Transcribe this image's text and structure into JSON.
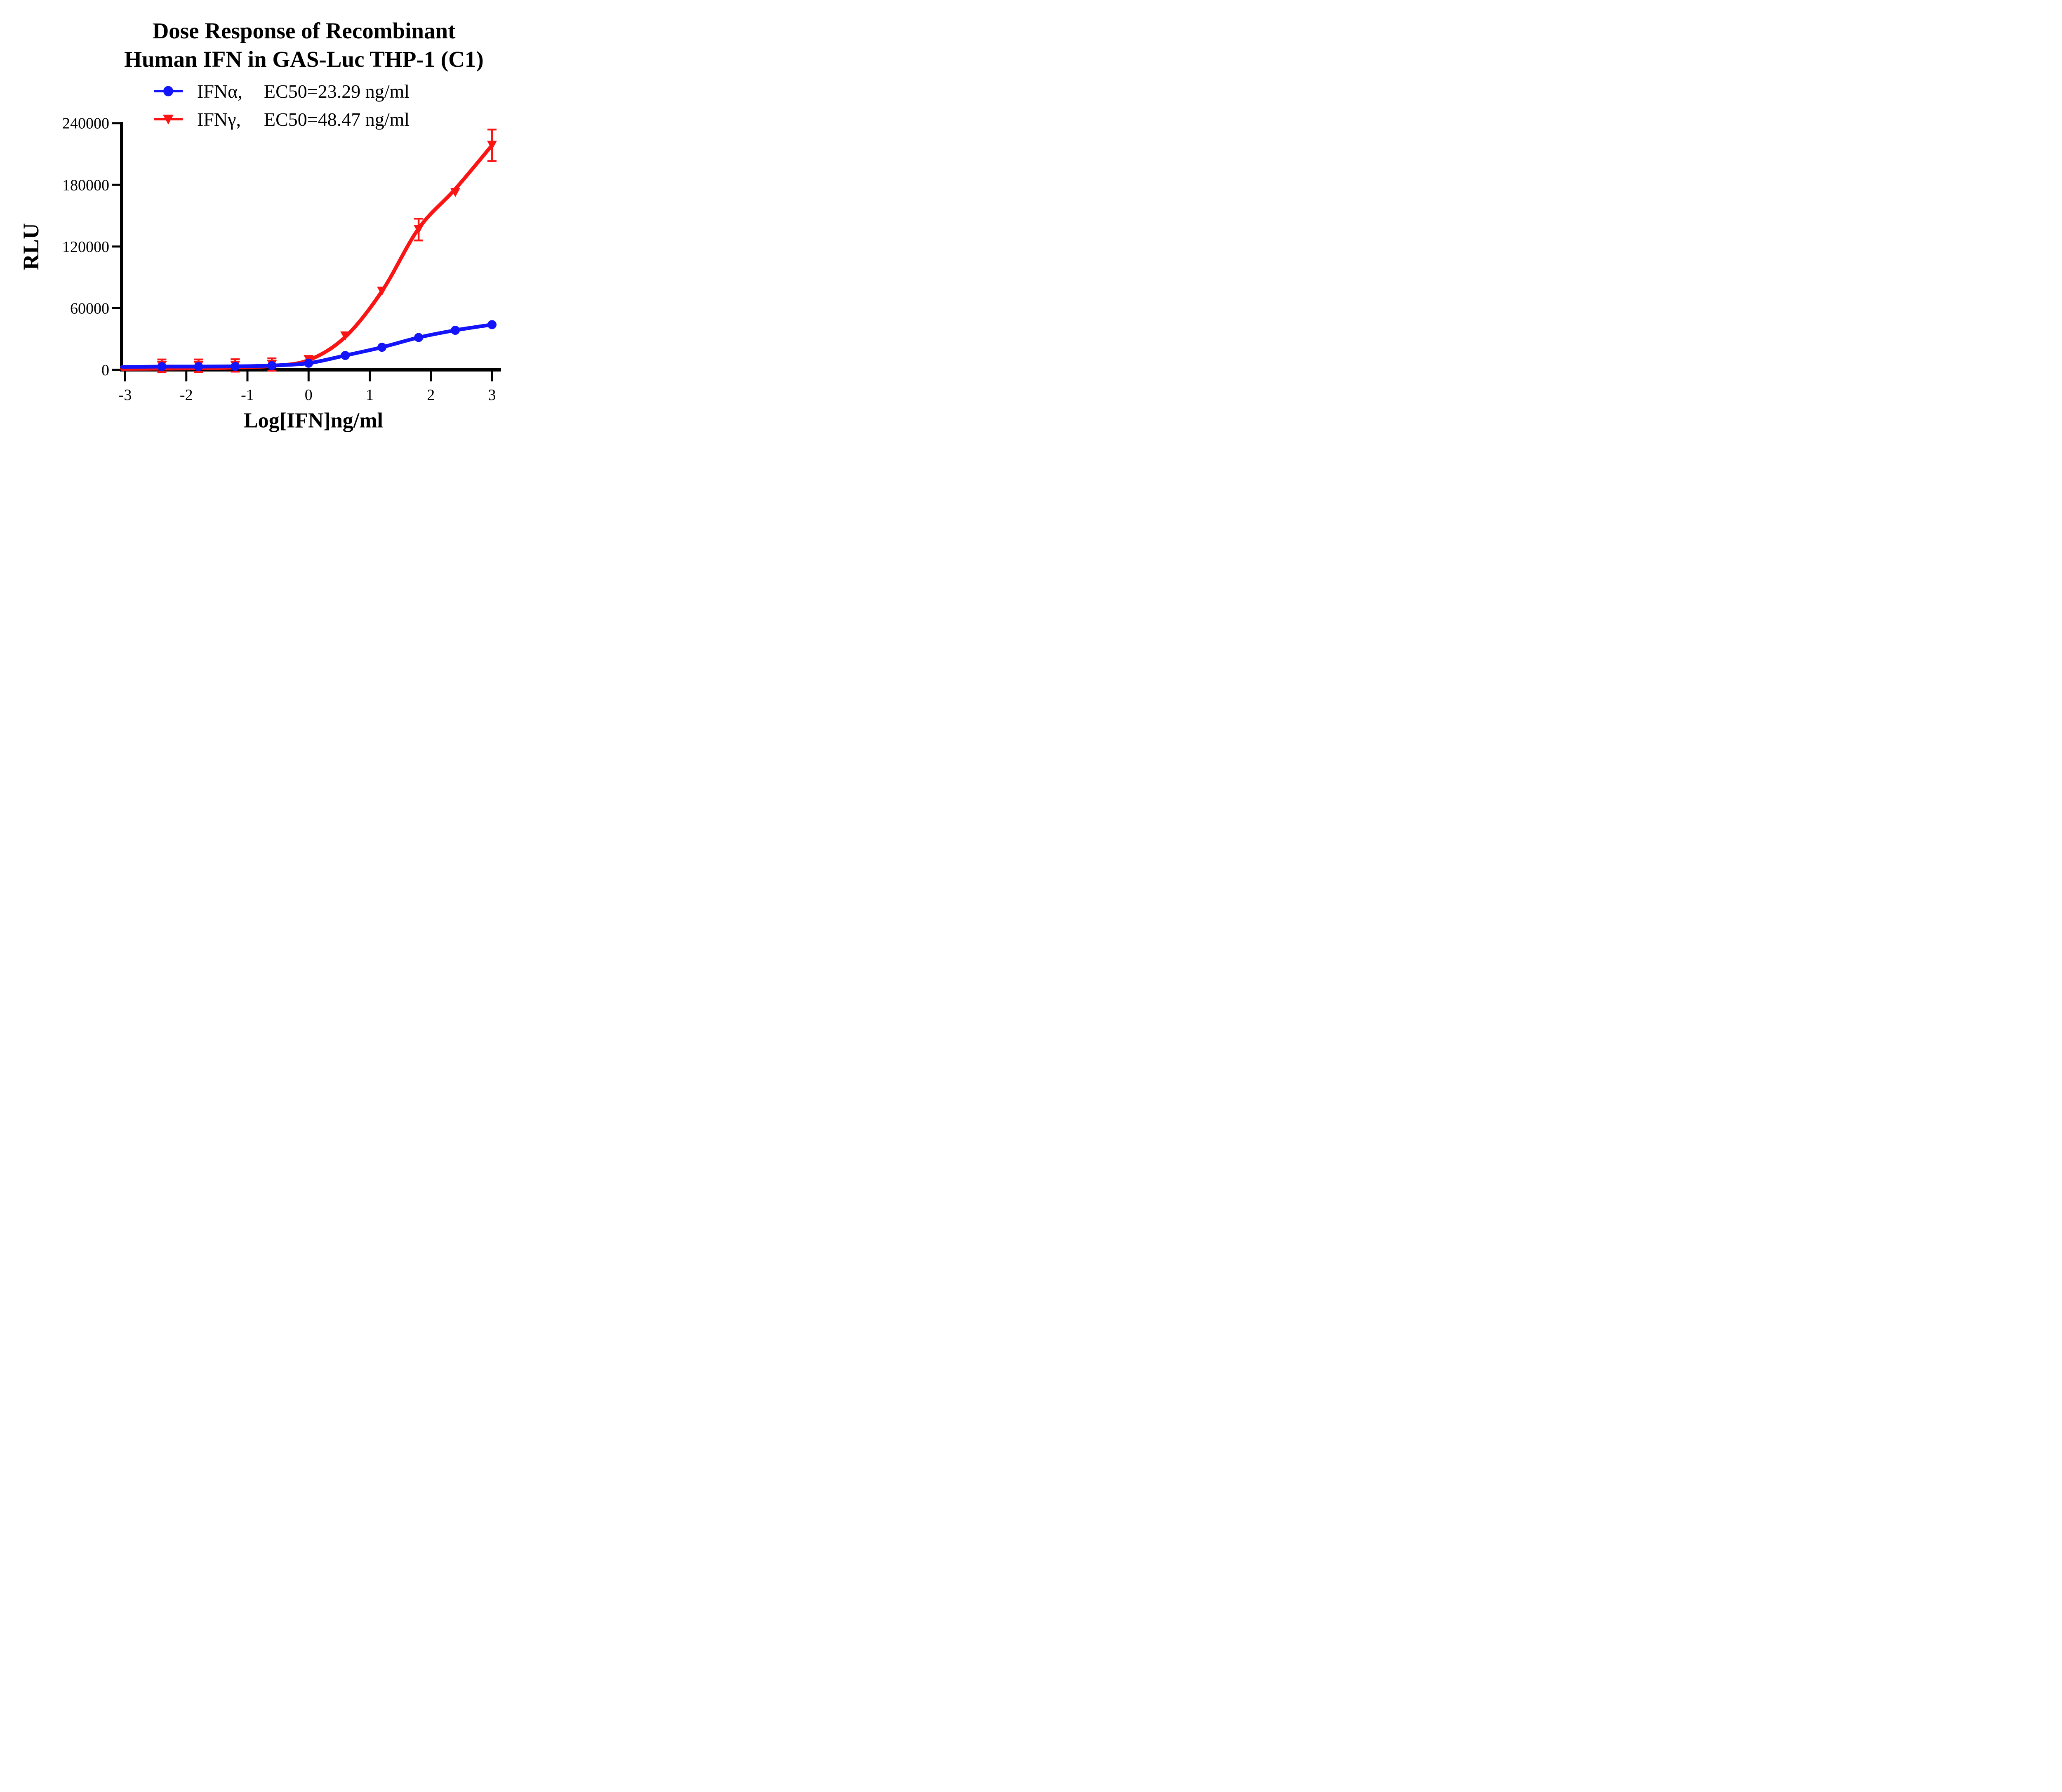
{
  "title": {
    "line1": "Dose Response of Recombinant",
    "line2": "Human IFN in GAS-Luc THP-1 (C1)"
  },
  "legend": [
    {
      "label": "IFNα,",
      "ec50_text": "EC50=23.29 ng/ml",
      "color": "#1414fa",
      "marker": "circle"
    },
    {
      "label": "IFNγ,",
      "ec50_text": "EC50=48.47 ng/ml",
      "color": "#fa1414",
      "marker": "triangle-down"
    }
  ],
  "axes": {
    "x_title": "Log[IFN]ng/ml",
    "y_title": "RLU"
  },
  "colors": {
    "ifn_alpha": "#1414fa",
    "ifn_gamma": "#fa1414",
    "axis": "#000000"
  },
  "chart_data": {
    "type": "line",
    "title": "Dose Response of Recombinant Human IFN in GAS-Luc THP-1 (C1)",
    "xlabel": "Log[IFN]ng/ml",
    "ylabel": "RLU",
    "xlim": [
      -3.05,
      3.05
    ],
    "ylim": [
      0,
      240000
    ],
    "x_ticks": [
      -3,
      -2,
      -1,
      0,
      1,
      2,
      3
    ],
    "y_ticks": [
      240000,
      180000,
      120000,
      60000,
      0
    ],
    "grid": false,
    "legend_position": "top-center",
    "x": [
      -2.4,
      -1.8,
      -1.2,
      -0.6,
      0,
      0.6,
      1.2,
      1.8,
      2.4,
      3.0
    ],
    "series": [
      {
        "name": "IFNα",
        "ec50_label": "EC50=23.29 ng/ml",
        "ec50_ng_ml": 23.29,
        "color": "#1414fa",
        "marker": "circle",
        "values": [
          3200,
          3200,
          3400,
          4200,
          6500,
          14000,
          22000,
          31500,
          38500,
          44000
        ],
        "sem": [
          0,
          0,
          0,
          0,
          0,
          0,
          0,
          0,
          0,
          0
        ],
        "fit_curve": [
          [
            -3.05,
            2800
          ],
          [
            -2.4,
            3200
          ],
          [
            -1.8,
            3200
          ],
          [
            -1.2,
            3400
          ],
          [
            -0.6,
            4200
          ],
          [
            0,
            6500
          ],
          [
            0.6,
            14000
          ],
          [
            1.2,
            22000
          ],
          [
            1.8,
            31500
          ],
          [
            2.4,
            38500
          ],
          [
            3.0,
            44000
          ]
        ]
      },
      {
        "name": "IFNγ",
        "ec50_label": "EC50=48.47 ng/ml",
        "ec50_ng_ml": 48.47,
        "color": "#fa1414",
        "marker": "triangle-down",
        "values": [
          4100,
          4100,
          4300,
          5200,
          10000,
          33000,
          76500,
          136500,
          172500,
          218500
        ],
        "sem": [
          6000,
          6000,
          6000,
          6000,
          0,
          0,
          0,
          10600,
          0,
          15300
        ],
        "fit_curve": [
          [
            -3.05,
            1000
          ],
          [
            -2.4,
            1200
          ],
          [
            -1.8,
            1500
          ],
          [
            -1.2,
            2200
          ],
          [
            -0.6,
            3800
          ],
          [
            0,
            9500
          ],
          [
            0.6,
            32000
          ],
          [
            1.2,
            76500
          ],
          [
            1.8,
            137500
          ],
          [
            2.4,
            176000
          ],
          [
            3.0,
            218500
          ]
        ]
      }
    ]
  }
}
